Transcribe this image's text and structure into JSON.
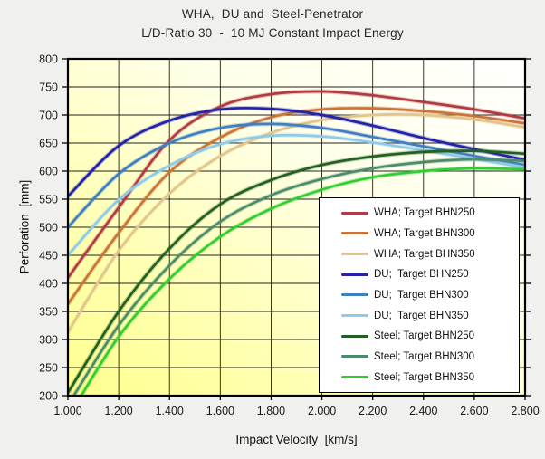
{
  "colors": {
    "background": "#F0F0EE",
    "plot_gradient": [
      "#FFFFFF",
      "#FFFFE8",
      "#FFFFB4",
      "#FFFF8E"
    ],
    "grid": "#222222",
    "border": "#000000",
    "text": "#262626"
  },
  "chart_data": {
    "type": "line",
    "title": "WHA,  DU and  Steel-Penetrator",
    "subtitle": "L/D-Ratio 30  -  10 MJ Constant Impact Energy",
    "xlabel": "Impact Velocity  [km/s]",
    "ylabel": "Perforation  [mm]",
    "xlim": [
      1.0,
      2.8
    ],
    "ylim": [
      200,
      800
    ],
    "grid": true,
    "legend_position": "inside bottom-right",
    "x": [
      1.0,
      1.2,
      1.4,
      1.6,
      1.8,
      2.0,
      2.2,
      2.4,
      2.6,
      2.8
    ],
    "xtick_labels": [
      "1.000",
      "1.200",
      "1.400",
      "1.600",
      "1.800",
      "2.000",
      "2.200",
      "2.400",
      "2.600",
      "2.800"
    ],
    "yticks": [
      200,
      250,
      300,
      350,
      400,
      450,
      500,
      550,
      600,
      650,
      700,
      750,
      800
    ],
    "series": [
      {
        "name": "WHA; Target BHN250",
        "color": "#B13B44",
        "values": [
          410,
          535,
          655,
          715,
          737,
          742,
          735,
          723,
          710,
          694
        ]
      },
      {
        "name": "WHA; Target BHN300",
        "color": "#C97439",
        "values": [
          363,
          490,
          598,
          660,
          696,
          710,
          712,
          707,
          698,
          685
        ]
      },
      {
        "name": "WHA; Target BHN350",
        "color": "#E2C58C",
        "values": [
          313,
          458,
          560,
          627,
          668,
          691,
          700,
          700,
          692,
          678
        ]
      },
      {
        "name": "DU;  Target BHN250",
        "color": "#2323A9",
        "values": [
          555,
          645,
          690,
          710,
          711,
          700,
          681,
          659,
          639,
          620
        ]
      },
      {
        "name": "DU;  Target BHN300",
        "color": "#3F7FC1",
        "values": [
          500,
          595,
          650,
          677,
          684,
          677,
          661,
          644,
          627,
          611
        ]
      },
      {
        "name": "DU;  Target BHN350",
        "color": "#8FCBE8",
        "values": [
          450,
          549,
          610,
          648,
          663,
          662,
          651,
          637,
          622,
          606
        ]
      },
      {
        "name": "Steel; Target BHN250",
        "color": "#226022",
        "values": [
          205,
          350,
          462,
          541,
          584,
          611,
          626,
          634,
          636,
          631
        ]
      },
      {
        "name": "Steel; Target BHN300",
        "color": "#4C8C6A",
        "values": [
          183,
          325,
          432,
          510,
          557,
          586,
          605,
          616,
          621,
          618
        ]
      },
      {
        "name": "Steel; Target BHN350",
        "color": "#32CD32",
        "values": [
          160,
          305,
          408,
          483,
          533,
          567,
          589,
          600,
          605,
          603
        ]
      }
    ]
  }
}
